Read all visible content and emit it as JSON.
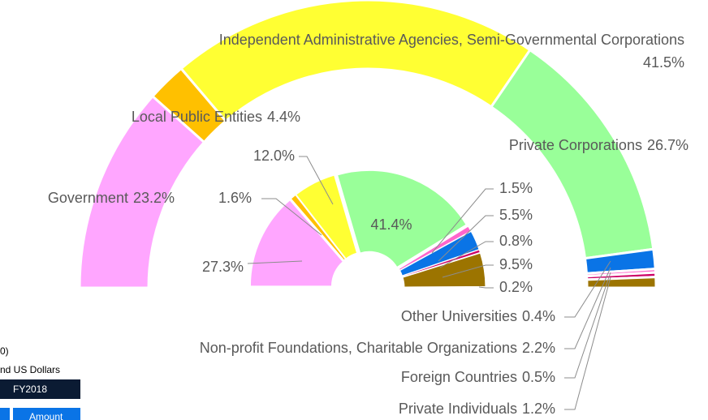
{
  "chart_data": [
    {
      "type": "donut",
      "categories": [
        "Government",
        "Local Public Entities",
        "Independent Administrative Agencies, Semi-Governmental Corporations",
        "Private Corporations",
        "Non-profit Foundations, Charitable Organizations",
        "Other Universities",
        "Foreign Countries",
        "Private Individuals"
      ],
      "values": [
        23.2,
        4.4,
        41.5,
        26.7,
        2.2,
        0.4,
        0.5,
        1.2
      ],
      "value_labels": [
        "23.2%",
        "4.4%",
        "41.5%",
        "26.7%",
        "2.2%",
        "0.4%",
        "0.5%",
        "1.2%"
      ],
      "colors": [
        "#ffa6ff",
        "#ffc000",
        "#ffff33",
        "#99ff99",
        "#0a74e6",
        "#ff66cc",
        "#cc0066",
        "#9c7400"
      ]
    },
    {
      "type": "donut",
      "values": [
        27.3,
        1.6,
        12.0,
        41.4,
        1.5,
        5.5,
        0.8,
        9.5,
        0.2
      ],
      "value_labels": [
        "27.3%",
        "1.6%",
        "12.0%",
        "41.4%",
        "1.5%",
        "5.5%",
        "0.8%",
        "9.5%",
        "0.2%"
      ],
      "colors": [
        "#ffa6ff",
        "#ffc000",
        "#ffff33",
        "#99ff99",
        "#ff66cc",
        "#0a74e6",
        "#cc0066",
        "#9c7400",
        "#7030a0"
      ]
    }
  ],
  "table": {
    "title_fragment": "0)",
    "unit_fragment": "nd US Dollars",
    "header": "FY2018",
    "subheader": "Amount"
  }
}
